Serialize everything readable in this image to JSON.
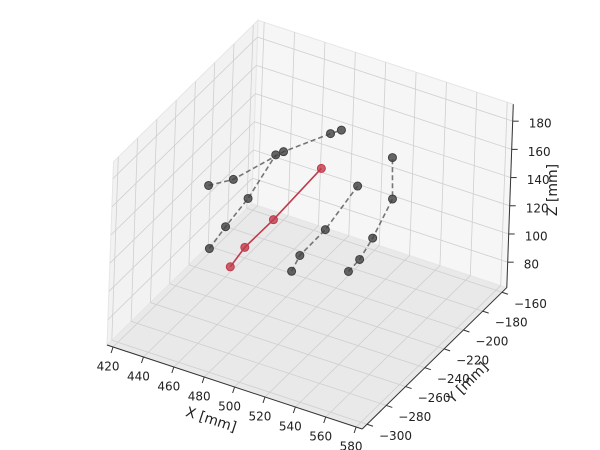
{
  "chart_data": {
    "type": "scatter3d",
    "xlabel": "X [mm]",
    "ylabel": "Y [mm]",
    "zlabel": "Z [mm]",
    "xlim": [
      416,
      584
    ],
    "ylim": [
      -305,
      -155
    ],
    "zlim": [
      62,
      192
    ],
    "xticks": [
      420,
      440,
      460,
      480,
      500,
      520,
      540,
      560,
      580
    ],
    "yticks": [
      {
        "value": -160,
        "label": "−160"
      },
      {
        "value": -180,
        "label": "−180"
      },
      {
        "value": -200,
        "label": "−200"
      },
      {
        "value": -220,
        "label": "−220"
      },
      {
        "value": -240,
        "label": "−240"
      },
      {
        "value": -260,
        "label": "−260"
      },
      {
        "value": -280,
        "label": "−280"
      },
      {
        "value": -300,
        "label": "−300"
      }
    ],
    "zticks": [
      80,
      100,
      120,
      140,
      160,
      180
    ],
    "grid": true,
    "series": [
      {
        "color": "#404040",
        "linestyle": "dashed",
        "x": [
          435,
          445,
          459,
          476
        ],
        "y": [
          -230,
          -230,
          -230,
          -230
        ],
        "z": [
          87,
          106,
          131,
          168
        ]
      },
      {
        "color": "#404040",
        "linestyle": "dashed",
        "x": [
          433,
          449,
          481,
          493,
          500
        ],
        "y": [
          -230,
          -230,
          -230,
          -200,
          -200
        ],
        "z": [
          131,
          141,
          172,
          169,
          174
        ]
      },
      {
        "color": "#404040",
        "linestyle": "dashed",
        "x": [
          489,
          494,
          510,
          530
        ],
        "y": [
          -230,
          -230,
          -230,
          -230
        ],
        "z": [
          90,
          103,
          127,
          165
        ]
      },
      {
        "color": "#404040",
        "linestyle": "dashed",
        "x": [
          526,
          533,
          541,
          553,
          552
        ],
        "y": [
          -230,
          -230,
          -230,
          -230,
          -230
        ],
        "z": [
          103,
          114,
          132,
          164,
          193
        ]
      },
      {
        "color": "#c0394b",
        "linestyle": "solid",
        "x": [
          449,
          458,
          476,
          506
        ],
        "y": [
          -230,
          -230,
          -230,
          -230
        ],
        "z": [
          79,
          96,
          122,
          169
        ]
      }
    ]
  }
}
